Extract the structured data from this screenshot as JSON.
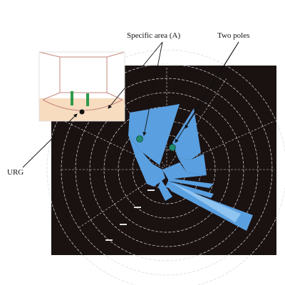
{
  "labels": {
    "specific_area": "Specific area (A)",
    "two_poles": "Two poles",
    "urg": "URG"
  },
  "colors": {
    "scan_background": "#1a1111",
    "scan_fill": "#5aa0e0",
    "grid": "#d8d8d8",
    "pole_marker": "#1e8a6e",
    "room_floor": "#f7dcc0",
    "pole_green": "#2e9a4a"
  }
}
